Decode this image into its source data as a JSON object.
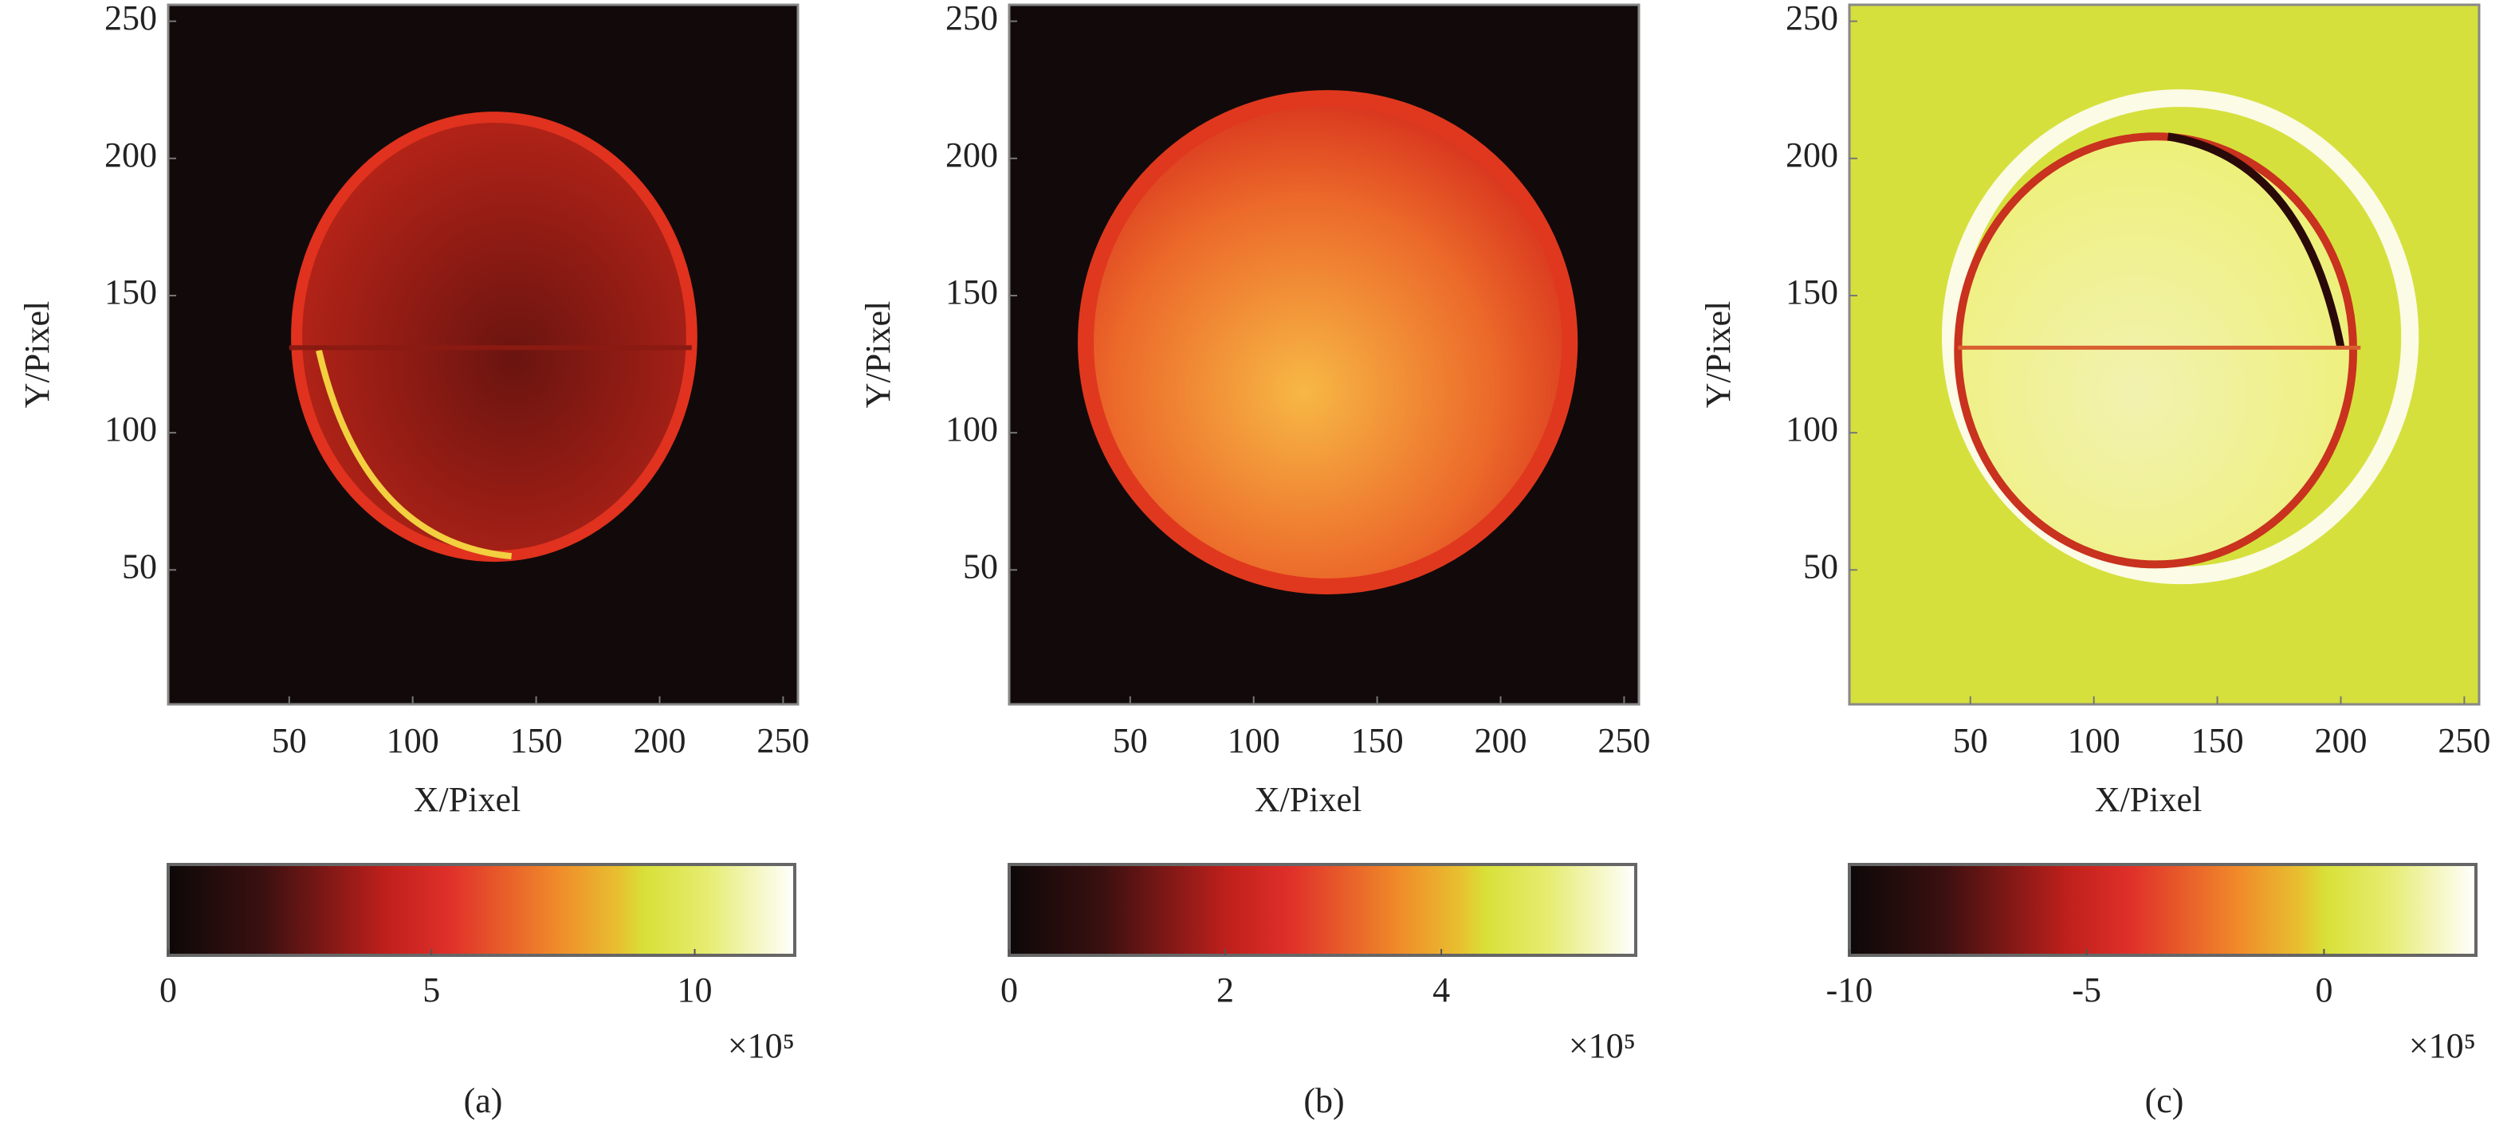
{
  "chart_data": [
    {
      "type": "heatmap",
      "xlabel": "X/Pixel",
      "ylabel": "Y/Pixel",
      "xlim": [
        1,
        256
      ],
      "xticks": [
        50,
        100,
        150,
        200,
        250
      ],
      "ylim": [
        1,
        256
      ],
      "yticks": [
        50,
        100,
        150,
        200,
        250
      ],
      "colorbar": {
        "lim": [
          0,
          11.9
        ],
        "ticks": [
          0,
          5,
          10
        ],
        "multiplier": "×10⁵"
      },
      "caption": "(a)"
    },
    {
      "type": "heatmap",
      "xlabel": "X/Pixel",
      "ylabel": "Y/Pixel",
      "xlim": [
        1,
        256
      ],
      "xticks": [
        50,
        100,
        150,
        200,
        250
      ],
      "ylim": [
        1,
        256
      ],
      "yticks": [
        50,
        100,
        150,
        200,
        250
      ],
      "colorbar": {
        "lim": [
          0,
          5.8
        ],
        "ticks": [
          0,
          2,
          4
        ],
        "multiplier": "×10⁵"
      },
      "caption": "(b)"
    },
    {
      "type": "heatmap",
      "xlabel": "X/Pixel",
      "ylabel": "Y/Pixel",
      "xlim": [
        1,
        256
      ],
      "xticks": [
        50,
        100,
        150,
        200,
        250
      ],
      "ylim": [
        1,
        256
      ],
      "yticks": [
        50,
        100,
        150,
        200,
        250
      ],
      "colorbar": {
        "lim": [
          -10,
          3.2
        ],
        "ticks": [
          -10,
          -5,
          0
        ],
        "multiplier": "×10⁵"
      },
      "caption": "(c)"
    }
  ]
}
